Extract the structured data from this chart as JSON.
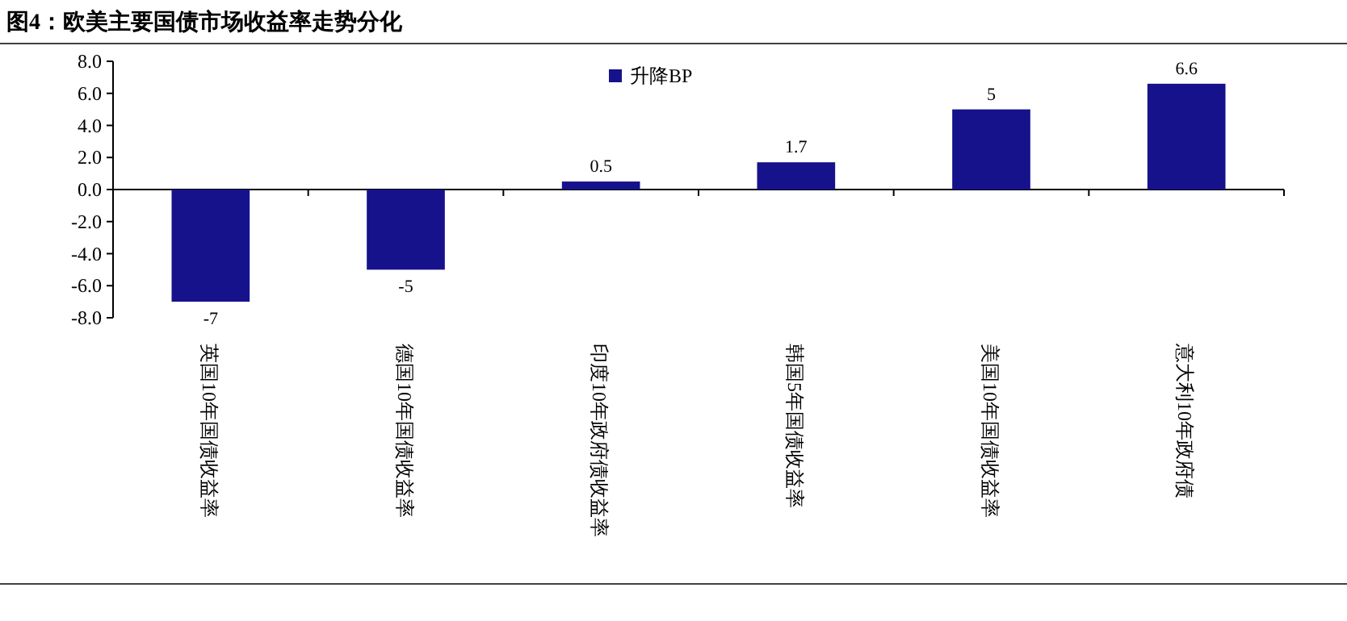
{
  "chart_data": {
    "type": "bar",
    "title": "图4：欧美主要国债市场收益率走势分化",
    "categories": [
      "英国10年国债收益率",
      "德国10年国债收益率",
      "印度10年政府债收益率",
      "韩国5年国债收益率",
      "美国10年国债收益率",
      "意大利10年政府债"
    ],
    "series": [
      {
        "name": "升降BP",
        "color": "#16128c",
        "values": [
          -7,
          -5,
          0.5,
          1.7,
          5,
          6.6
        ]
      }
    ],
    "ylim": [
      -8,
      8
    ],
    "yticks": [
      {
        "value": -8,
        "label": "-8.0"
      },
      {
        "value": -6,
        "label": "-6.0"
      },
      {
        "value": -4,
        "label": "-4.0"
      },
      {
        "value": -2,
        "label": "-2.0"
      },
      {
        "value": 0,
        "label": "0.0"
      },
      {
        "value": 2,
        "label": "2.0"
      },
      {
        "value": 4,
        "label": "4.0"
      },
      {
        "value": 6,
        "label": "6.0"
      },
      {
        "value": 8,
        "label": "8.0"
      }
    ],
    "data_labels": true,
    "legend": "top"
  }
}
